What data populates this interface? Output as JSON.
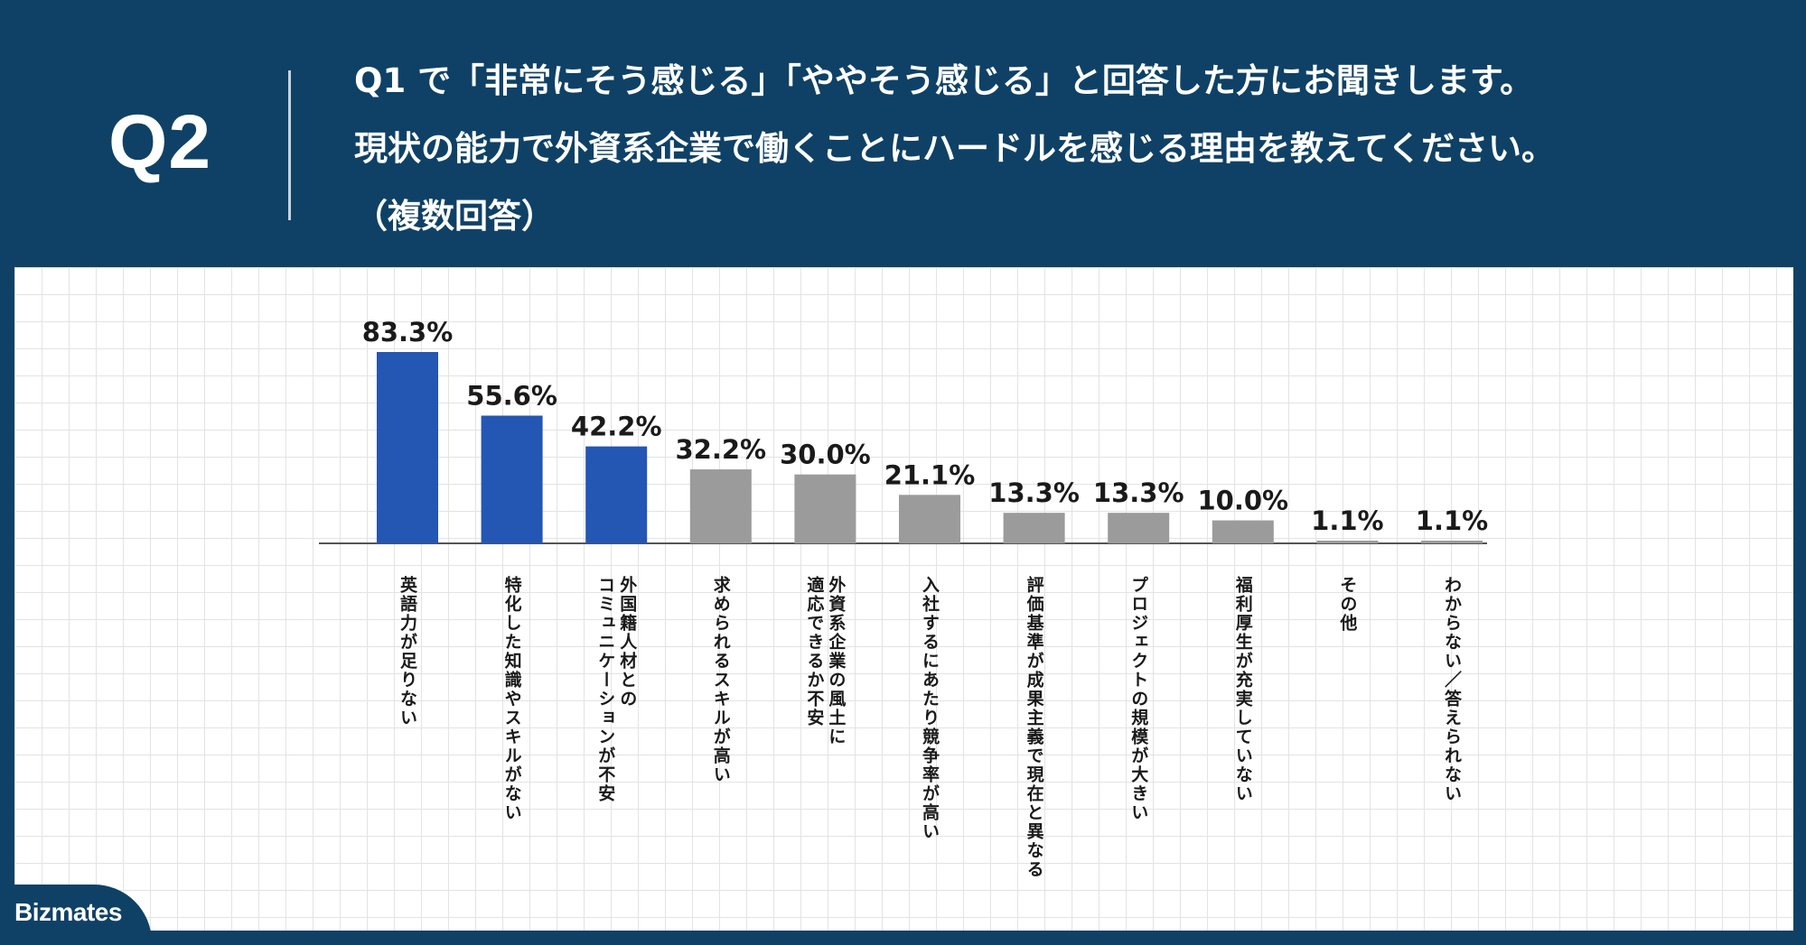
{
  "header": {
    "q_label": "Q2",
    "question_lines": [
      "Q1 で「非常にそう感じる」「ややそう感じる」と回答した方にお聞きします。",
      "現状の能力で外資系企業で働くことにハードルを感じる理由を教えてください。",
      "（複数回答）"
    ]
  },
  "brand": {
    "logo": "Bizmates"
  },
  "colors": {
    "background": "#0f4166",
    "highlight_bar": "#2456b4",
    "normal_bar": "#9b9b9b",
    "axis": "#555555"
  },
  "chart_data": {
    "type": "bar",
    "categories": [
      "英語力が足りない",
      "特化した知識やスキルがない",
      "外国籍人材との\nコミュニケーションが不安",
      "求められるスキルが高い",
      "外資系企業の風土に\n適応できるか不安",
      "入社するにあたり競争率が高い",
      "評価基準が成果主義で現在と異なる",
      "プロジェクトの規模が大きい",
      "福利厚生が充実していない",
      "その他",
      "わからない／答えられない"
    ],
    "values": [
      83.3,
      55.6,
      42.2,
      32.2,
      30.0,
      21.1,
      13.3,
      13.3,
      10.0,
      1.1,
      1.1
    ],
    "value_labels": [
      "83.3%",
      "55.6%",
      "42.2%",
      "32.2%",
      "30.0%",
      "21.1%",
      "13.3%",
      "13.3%",
      "10.0%",
      "1.1%",
      "1.1%"
    ],
    "highlighted_indices": [
      0,
      1,
      2
    ],
    "unit": "%",
    "title": "",
    "xlabel": "",
    "ylabel": "",
    "ylim": [
      0,
      83.3
    ],
    "grid": false,
    "legend": "none"
  }
}
